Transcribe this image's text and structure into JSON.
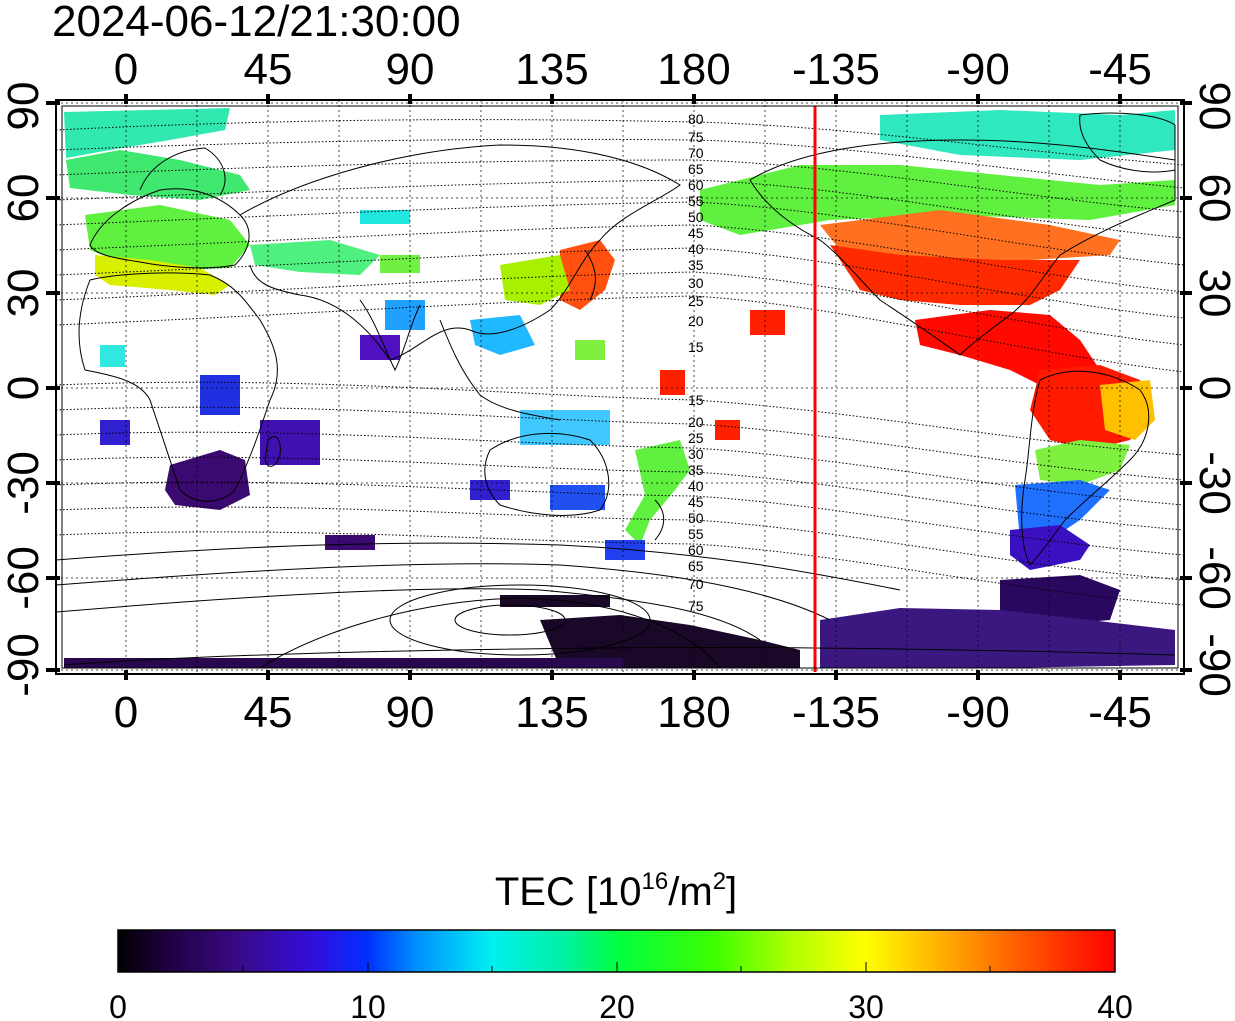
{
  "timestamp": "2024-06-12/21:30:00",
  "lon_ticks": [
    "0",
    "45",
    "90",
    "135",
    "180",
    "-135",
    "-90",
    "-45"
  ],
  "lat_ticks_left": [
    "90",
    "60",
    "30",
    "0",
    "-30",
    "-60",
    "-90"
  ],
  "lat_ticks_right": [
    "90",
    "60",
    "30",
    "0",
    "-30",
    "-60",
    "-90"
  ],
  "contour_labels_north": [
    "80",
    "75",
    "70",
    "65",
    "60",
    "55",
    "50",
    "45",
    "40",
    "35",
    "30",
    "25",
    "20",
    "15"
  ],
  "contour_labels_south": [
    "15",
    "20",
    "25",
    "30",
    "35",
    "40",
    "45",
    "50",
    "55",
    "60",
    "65",
    "70",
    "75"
  ],
  "colorbar": {
    "title_prefix": "TEC  [10",
    "title_sup1": "16",
    "title_mid": "/m",
    "title_sup2": "2",
    "title_suffix": "]",
    "ticks": [
      "0",
      "10",
      "20",
      "30",
      "40"
    ],
    "min": 0,
    "max": 40,
    "stops": [
      {
        "v": 0,
        "color": "#000000"
      },
      {
        "v": 2,
        "color": "#200040"
      },
      {
        "v": 5,
        "color": "#3a0a8c"
      },
      {
        "v": 8,
        "color": "#3010e0"
      },
      {
        "v": 10,
        "color": "#0030ff"
      },
      {
        "v": 12,
        "color": "#0090ff"
      },
      {
        "v": 15,
        "color": "#00f0f0"
      },
      {
        "v": 18,
        "color": "#00f0a0"
      },
      {
        "v": 20,
        "color": "#00ff40"
      },
      {
        "v": 24,
        "color": "#40ff00"
      },
      {
        "v": 27,
        "color": "#b0ff00"
      },
      {
        "v": 30,
        "color": "#ffff00"
      },
      {
        "v": 33,
        "color": "#ffb000"
      },
      {
        "v": 36,
        "color": "#ff6000"
      },
      {
        "v": 40,
        "color": "#ff0000"
      }
    ]
  },
  "terminator_line_color": "#ff0000"
}
